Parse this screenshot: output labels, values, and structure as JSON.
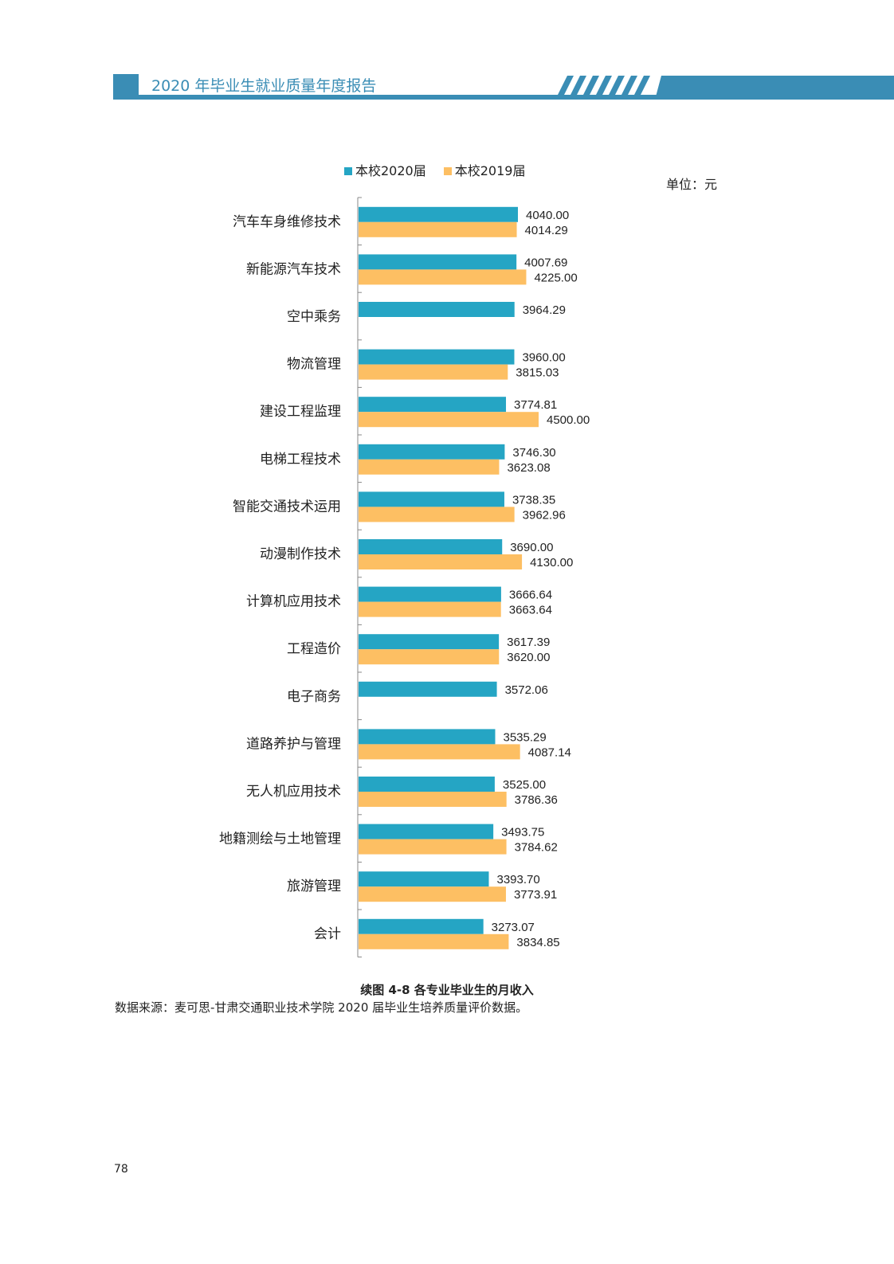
{
  "header": {
    "title": "2020 年毕业生就业质量年度报告"
  },
  "unit": "单位：元",
  "caption": "续图 4-8 各专业毕业生的月收入",
  "source": "数据来源：麦可思-甘肃交通职业技术学院 2020 届毕业生培养质量评价数据。",
  "page_number": "78",
  "colors": {
    "brand": "#3a8db5",
    "s2020": "#25a5c4",
    "s2019": "#fdbf63"
  },
  "chart_data": {
    "type": "bar",
    "orientation": "horizontal",
    "title": "续图 4-8 各专业毕业生的月收入",
    "xlabel": "",
    "ylabel": "",
    "unit": "元",
    "legend_position": "top",
    "categories": [
      "汽车车身维修技术",
      "新能源汽车技术",
      "空中乘务",
      "物流管理",
      "建设工程监理",
      "电梯工程技术",
      "智能交通技术运用",
      "动漫制作技术",
      "计算机应用技术",
      "工程造价",
      "电子商务",
      "道路养护与管理",
      "无人机应用技术",
      "地籍测绘与土地管理",
      "旅游管理",
      "会计"
    ],
    "series": [
      {
        "name": "本校2020届",
        "values": [
          4040.0,
          4007.69,
          3964.29,
          3960.0,
          3774.81,
          3746.3,
          3738.35,
          3690.0,
          3666.64,
          3617.39,
          3572.06,
          3535.29,
          3525.0,
          3493.75,
          3393.7,
          3273.07
        ],
        "labels": [
          "4040.00",
          "4007.69",
          "3964.29",
          "3960.00",
          "3774.81",
          "3746.30",
          "3738.35",
          "3690.00",
          "3666.64",
          "3617.39",
          "3572.06",
          "3535.29",
          "3525.00",
          "3493.75",
          "3393.70",
          "3273.07"
        ]
      },
      {
        "name": "本校2019届",
        "values": [
          4014.29,
          4225.0,
          null,
          3815.03,
          4500.0,
          3623.08,
          3962.96,
          4130.0,
          3663.64,
          3620.0,
          null,
          4087.14,
          3786.36,
          3784.62,
          3773.91,
          3834.85
        ],
        "labels": [
          "4014.29",
          "4225.00",
          null,
          "3815.03",
          "4500.00",
          "3623.08",
          "3962.96",
          "4130.00",
          "3663.64",
          "3620.00",
          null,
          "4087.14",
          "3786.36",
          "3784.62",
          "3773.91",
          "3834.85"
        ]
      }
    ]
  }
}
